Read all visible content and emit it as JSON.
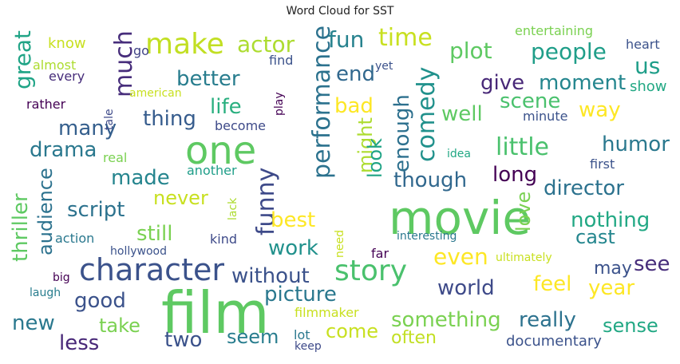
{
  "title": "Word Cloud for SST",
  "words": [
    {
      "text": "film",
      "color": "#5ec962",
      "rot": false
    },
    {
      "text": "movie",
      "color": "#5ec962",
      "rot": false
    },
    {
      "text": "one",
      "color": "#5ec962",
      "rot": false
    },
    {
      "text": "character",
      "color": "#3b528b",
      "rot": false
    },
    {
      "text": "make",
      "color": "#c2df23",
      "rot": false
    },
    {
      "text": "story",
      "color": "#4ac16d",
      "rot": false
    },
    {
      "text": "performance",
      "color": "#2c728e",
      "rot": true
    },
    {
      "text": "funny",
      "color": "#3e4a89",
      "rot": true
    },
    {
      "text": "comedy",
      "color": "#21918c",
      "rot": true
    },
    {
      "text": "much",
      "color": "#472d7b",
      "rot": true
    },
    {
      "text": "time",
      "color": "#c8e020",
      "rot": false
    },
    {
      "text": "actor",
      "color": "#addc30",
      "rot": false
    },
    {
      "text": "fun",
      "color": "#26828e",
      "rot": false
    },
    {
      "text": "people",
      "color": "#1f9e89",
      "rot": false
    },
    {
      "text": "plot",
      "color": "#5ec962",
      "rot": false
    },
    {
      "text": "us",
      "color": "#1f9e89",
      "rot": false
    },
    {
      "text": "great",
      "color": "#20a486",
      "rot": true
    },
    {
      "text": "end",
      "color": "#31688e",
      "rot": false
    },
    {
      "text": "give",
      "color": "#482878",
      "rot": false
    },
    {
      "text": "moment",
      "color": "#24868e",
      "rot": false
    },
    {
      "text": "better",
      "color": "#287d8e",
      "rot": false
    },
    {
      "text": "scene",
      "color": "#4ac16d",
      "rot": false
    },
    {
      "text": "way",
      "color": "#fde725",
      "rot": false
    },
    {
      "text": "life",
      "color": "#29af7f",
      "rot": false
    },
    {
      "text": "bad",
      "color": "#fde725",
      "rot": false
    },
    {
      "text": "enough",
      "color": "#2d708e",
      "rot": true
    },
    {
      "text": "well",
      "color": "#5ec962",
      "rot": false
    },
    {
      "text": "thing",
      "color": "#365c8d",
      "rot": false
    },
    {
      "text": "many",
      "color": "#355f8d",
      "rot": false
    },
    {
      "text": "little",
      "color": "#4ac16d",
      "rot": false
    },
    {
      "text": "humor",
      "color": "#2a788e",
      "rot": false
    },
    {
      "text": "drama",
      "color": "#2a788e",
      "rot": false
    },
    {
      "text": "might",
      "color": "#addc30",
      "rot": true
    },
    {
      "text": "look",
      "color": "#20a486",
      "rot": true
    },
    {
      "text": "though",
      "color": "#31688e",
      "rot": false
    },
    {
      "text": "long",
      "color": "#440154",
      "rot": false
    },
    {
      "text": "director",
      "color": "#2c728e",
      "rot": false
    },
    {
      "text": "made",
      "color": "#25858e",
      "rot": false
    },
    {
      "text": "never",
      "color": "#c8e020",
      "rot": false
    },
    {
      "text": "script",
      "color": "#2c728e",
      "rot": false
    },
    {
      "text": "audience",
      "color": "#2c728e",
      "rot": true
    },
    {
      "text": "thriller",
      "color": "#5ec962",
      "rot": true
    },
    {
      "text": "best",
      "color": "#fde725",
      "rot": false
    },
    {
      "text": "love",
      "color": "#7ad151",
      "rot": true
    },
    {
      "text": "nothing",
      "color": "#22a884",
      "rot": false
    },
    {
      "text": "still",
      "color": "#7ad151",
      "rot": false
    },
    {
      "text": "work",
      "color": "#21918c",
      "rot": false
    },
    {
      "text": "cast",
      "color": "#24868e",
      "rot": false
    },
    {
      "text": "even",
      "color": "#fde725",
      "rot": false
    },
    {
      "text": "see",
      "color": "#472d7b",
      "rot": false
    },
    {
      "text": "may",
      "color": "#3b528b",
      "rot": false
    },
    {
      "text": "without",
      "color": "#3b528b",
      "rot": false
    },
    {
      "text": "feel",
      "color": "#fde725",
      "rot": false
    },
    {
      "text": "year",
      "color": "#fde725",
      "rot": false
    },
    {
      "text": "world",
      "color": "#3e4a89",
      "rot": false
    },
    {
      "text": "good",
      "color": "#3b528b",
      "rot": false
    },
    {
      "text": "picture",
      "color": "#2a788e",
      "rot": false
    },
    {
      "text": "new",
      "color": "#2a788e",
      "rot": false
    },
    {
      "text": "take",
      "color": "#7ad151",
      "rot": false
    },
    {
      "text": "something",
      "color": "#7ad151",
      "rot": false
    },
    {
      "text": "really",
      "color": "#2c728e",
      "rot": false
    },
    {
      "text": "sense",
      "color": "#22a884",
      "rot": false
    },
    {
      "text": "less",
      "color": "#482878",
      "rot": false
    },
    {
      "text": "two",
      "color": "#3b528b",
      "rot": false
    },
    {
      "text": "seem",
      "color": "#287d8e",
      "rot": false
    },
    {
      "text": "come",
      "color": "#c8e020",
      "rot": false
    },
    {
      "text": "often",
      "color": "#c2df23",
      "rot": false
    },
    {
      "text": "documentary",
      "color": "#3b528b",
      "rot": false
    },
    {
      "text": "know",
      "color": "#c8e020",
      "rot": false
    },
    {
      "text": "almost",
      "color": "#addc30",
      "rot": false
    },
    {
      "text": "every",
      "color": "#472d7b",
      "rot": false
    },
    {
      "text": "rather",
      "color": "#440154",
      "rot": false
    },
    {
      "text": "go",
      "color": "#414487",
      "rot": false
    },
    {
      "text": "find",
      "color": "#3b528b",
      "rot": false
    },
    {
      "text": "yet",
      "color": "#3b528b",
      "rot": false
    },
    {
      "text": "entertaining",
      "color": "#7ad151",
      "rot": false
    },
    {
      "text": "heart",
      "color": "#3b528b",
      "rot": false
    },
    {
      "text": "show",
      "color": "#22a884",
      "rot": false
    },
    {
      "text": "american",
      "color": "#c8e020",
      "rot": false
    },
    {
      "text": "tale",
      "color": "#3e4a89",
      "rot": true
    },
    {
      "text": "play",
      "color": "#440154",
      "rot": true
    },
    {
      "text": "become",
      "color": "#3e4a89",
      "rot": false
    },
    {
      "text": "minute",
      "color": "#3b528b",
      "rot": false
    },
    {
      "text": "real",
      "color": "#7ad151",
      "rot": false
    },
    {
      "text": "idea",
      "color": "#22a884",
      "rot": false
    },
    {
      "text": "first",
      "color": "#3b528b",
      "rot": false
    },
    {
      "text": "another",
      "color": "#1f9e89",
      "rot": false
    },
    {
      "text": "lack",
      "color": "#addc30",
      "rot": true
    },
    {
      "text": "kind",
      "color": "#3e4a89",
      "rot": false
    },
    {
      "text": "action",
      "color": "#2a788e",
      "rot": false
    },
    {
      "text": "interesting",
      "color": "#2a788e",
      "rot": false
    },
    {
      "text": "hollywood",
      "color": "#3b528b",
      "rot": false
    },
    {
      "text": "need",
      "color": "#c8e020",
      "rot": true
    },
    {
      "text": "far",
      "color": "#440154",
      "rot": false
    },
    {
      "text": "ultimately",
      "color": "#c8e020",
      "rot": false
    },
    {
      "text": "big",
      "color": "#440154",
      "rot": false
    },
    {
      "text": "laugh",
      "color": "#287d8e",
      "rot": false
    },
    {
      "text": "filmmaker",
      "color": "#c8e020",
      "rot": false
    },
    {
      "text": "lot",
      "color": "#2a788e",
      "rot": false
    },
    {
      "text": "keep",
      "color": "#3e4a89",
      "rot": false
    }
  ]
}
